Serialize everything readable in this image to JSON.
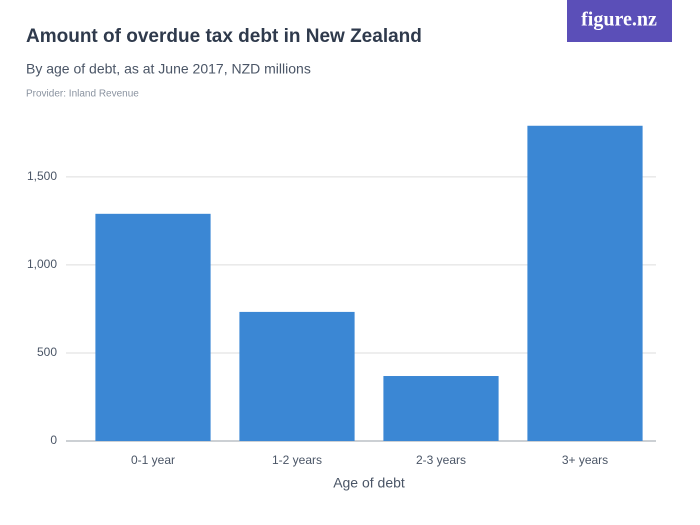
{
  "logo": "figure.nz",
  "chart_data": {
    "type": "bar",
    "title": "Amount of overdue tax debt in New Zealand",
    "subtitle": "By age of debt, as at June 2017, NZD millions",
    "provider": "Provider: Inland Revenue",
    "x_label": "Age of debt",
    "categories": [
      "0-1 year",
      "1-2 years",
      "2-3 years",
      "3+ years"
    ],
    "values": [
      1290,
      733,
      369,
      1790
    ],
    "color": "#3b87d4",
    "ylim": [
      0,
      1800
    ],
    "yticks": [
      0,
      500,
      {
        "value": 1000,
        "label": "1,000"
      },
      {
        "value": 1500,
        "label": "1,500"
      }
    ],
    "grid": true
  }
}
